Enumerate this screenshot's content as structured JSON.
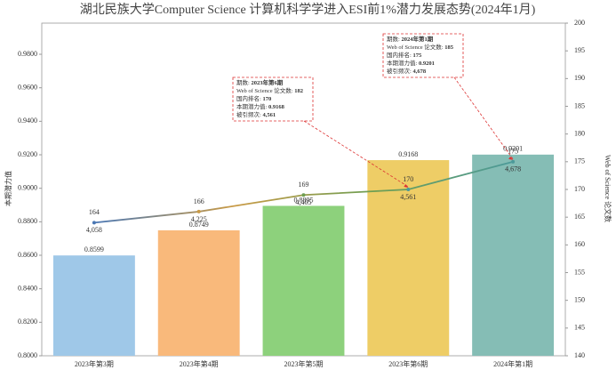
{
  "chart_data": {
    "type": "bar-line",
    "title": "湖北民族大学Computer Science  计算机科学学进入ESI前1%潜力发展态势(2024年1月)",
    "ylabel": "本期潜力值",
    "y2label": "Web of Science 论文数",
    "categories": [
      "2023年第3期",
      "2023年第4期",
      "2023年第5期",
      "2023年第6期",
      "2024年第1期"
    ],
    "ylim": [
      0.8,
      0.9986
    ],
    "yticks": [
      {
        "value": 0.8,
        "label": "0.8000"
      },
      {
        "value": 0.82,
        "label": "0.8200"
      },
      {
        "value": 0.84,
        "label": "0.8400"
      },
      {
        "value": 0.86,
        "label": "0.8600"
      },
      {
        "value": 0.88,
        "label": "0.8800"
      },
      {
        "value": 0.9,
        "label": "0.9000"
      },
      {
        "value": 0.92,
        "label": "0.9200"
      },
      {
        "value": 0.94,
        "label": "0.9400"
      },
      {
        "value": 0.96,
        "label": "0.9600"
      },
      {
        "value": 0.98,
        "label": "0.9800"
      }
    ],
    "y2lim": [
      140,
      200
    ],
    "y2ticks": [
      140,
      145,
      150,
      155,
      160,
      165,
      170,
      175,
      180,
      185,
      190,
      195,
      200
    ],
    "series": [
      {
        "type": "bar",
        "colors": [
          "#9fc8e8",
          "#f9b97b",
          "#8dd17c",
          "#eecd66",
          "#85bdb5"
        ],
        "values": [
          0.8599,
          0.8749,
          0.8895,
          0.9168,
          0.9201
        ]
      },
      {
        "type": "line",
        "axis": "y2",
        "gradient": [
          "#4a77b4",
          "#c99a45",
          "#6d9e52",
          "#4c9a9a"
        ],
        "values": [
          164,
          166,
          169,
          170,
          175
        ],
        "sub_labels": [
          "4,058",
          "4,225",
          "4,405",
          "4,561",
          "4,678"
        ]
      }
    ],
    "annotations": [
      {
        "point": 3,
        "lines": [
          {
            "key": "期数: ",
            "value": "2023年第6期"
          },
          {
            "key": "Web of Science 论文数: ",
            "value": "182"
          },
          {
            "key": "国内排名: ",
            "value": "170"
          },
          {
            "key": "本期潜力值: ",
            "value": "0.9168"
          },
          {
            "key": "被引频次: ",
            "value": "4,561"
          }
        ]
      },
      {
        "point": 4,
        "lines": [
          {
            "key": "期数: ",
            "value": "2024年第1期"
          },
          {
            "key": "Web of Science 论文数: ",
            "value": "185"
          },
          {
            "key": "国内排名: ",
            "value": "175"
          },
          {
            "key": "本期潜力值: ",
            "value": "0.9201"
          },
          {
            "key": "被引频次: ",
            "value": "4,678"
          }
        ]
      }
    ]
  }
}
